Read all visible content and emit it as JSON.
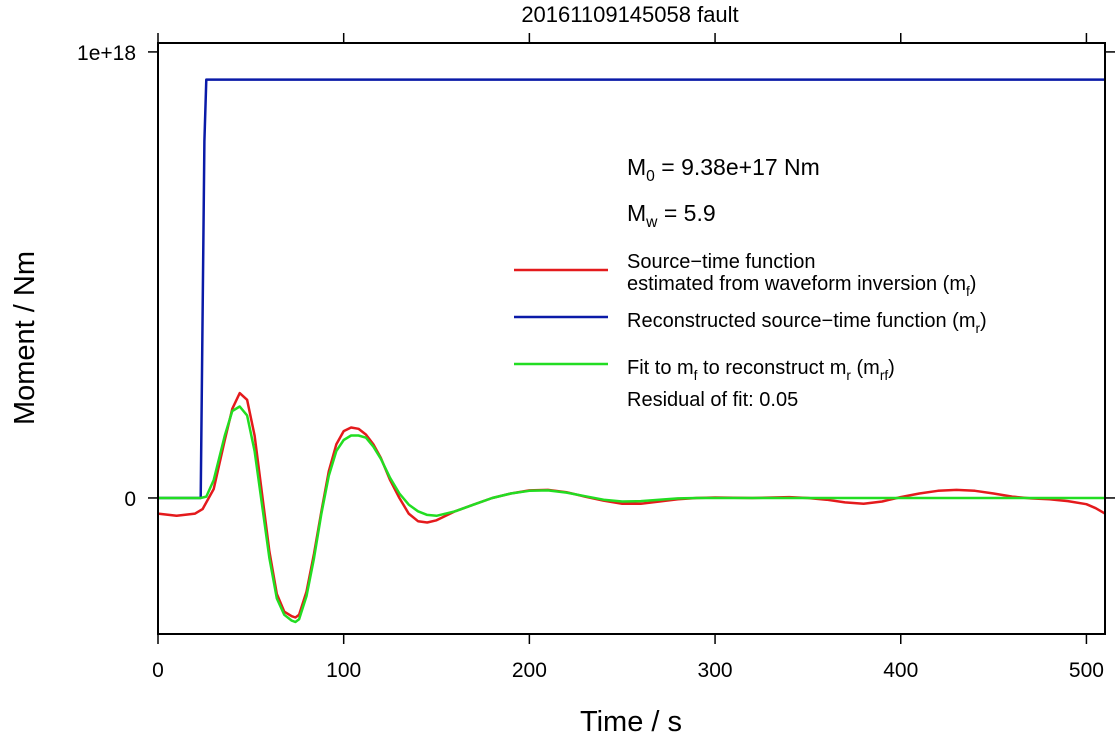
{
  "chart_data": {
    "type": "line",
    "title": "20161109145058 fault",
    "xlabel": "Time / s",
    "ylabel": "Moment / Nm",
    "xlim": [
      0,
      510
    ],
    "ylim": [
      -3.05e+17,
      1.02e+18
    ],
    "grid": false,
    "legend_position": "right",
    "x_ticks": [
      0,
      100,
      200,
      300,
      400,
      500
    ],
    "x_tick_labels": [
      "0",
      "100",
      "200",
      "300",
      "400",
      "500"
    ],
    "y_ticks": [
      0,
      1e+18
    ],
    "y_tick_labels": [
      "0",
      "1e+18"
    ],
    "annotations": {
      "m0": {
        "main": "M",
        "sub": "0",
        "rest": " = 9.38e+17 Nm"
      },
      "mw": {
        "main": "M",
        "sub": "w",
        "rest": " = 5.9"
      },
      "residual": "Residual of fit: 0.05"
    },
    "legend": [
      {
        "color": "#e41a1c",
        "lines": [
          [
            {
              "t": "Source−time function"
            }
          ],
          [
            {
              "t": "estimated from waveform inversion (m"
            },
            {
              "t": "f",
              "sub": true
            },
            {
              "t": ")"
            }
          ]
        ]
      },
      {
        "color": "#0a1aa8",
        "lines": [
          [
            {
              "t": "Reconstructed source−time function (m"
            },
            {
              "t": "r",
              "sub": true
            },
            {
              "t": ")"
            }
          ]
        ]
      },
      {
        "color": "#22dd22",
        "lines": [
          [
            {
              "t": "Fit to m"
            },
            {
              "t": "f",
              "sub": true
            },
            {
              "t": " to reconstruct m"
            },
            {
              "t": "r",
              "sub": true
            },
            {
              "t": " (m"
            },
            {
              "t": "rf",
              "sub": true
            },
            {
              "t": ")"
            }
          ]
        ]
      }
    ],
    "series": [
      {
        "color": "#0a1aa8",
        "x": [
          0,
          23,
          25,
          26,
          510
        ],
        "y": [
          0,
          0,
          8e+17,
          9.38e+17,
          9.38e+17
        ]
      },
      {
        "color": "#e41a1c",
        "x": [
          0,
          10,
          20,
          24,
          30,
          36,
          40,
          44,
          48,
          52,
          56,
          60,
          64,
          68,
          72,
          74,
          76,
          80,
          84,
          88,
          92,
          96,
          100,
          104,
          108,
          112,
          116,
          120,
          125,
          130,
          135,
          140,
          145,
          150,
          160,
          170,
          180,
          190,
          200,
          210,
          220,
          230,
          240,
          250,
          260,
          270,
          280,
          290,
          300,
          320,
          340,
          350,
          360,
          370,
          380,
          390,
          400,
          410,
          420,
          430,
          440,
          450,
          460,
          470,
          480,
          490,
          500,
          505,
          510
        ],
        "y": [
          -3.5e+16,
          -4e+16,
          -3.5e+16,
          -2.5e+16,
          2e+16,
          1.3e+17,
          2e+17,
          2.35e+17,
          2.2e+17,
          1.4e+17,
          1e+16,
          -1.2e+17,
          -2.15e+17,
          -2.55e+17,
          -2.65e+17,
          -2.68e+17,
          -2.62e+17,
          -2.1e+17,
          -1.25e+17,
          -3e+16,
          6e+16,
          1.2e+17,
          1.5e+17,
          1.58e+17,
          1.55e+17,
          1.42e+17,
          1.2e+17,
          9e+16,
          4e+16,
          0,
          -3.5e+16,
          -5.2e+16,
          -5.5e+16,
          -5e+16,
          -3e+16,
          -1.5e+16,
          0,
          1e+16,
          1.7e+16,
          1.8e+16,
          1.3e+16,
          3000000000000000.0,
          -6000000000000000.0,
          -1.3e+16,
          -1.3e+16,
          -8000000000000000.0,
          -3000000000000000.0,
          0,
          1000000000000000.0,
          0,
          2000000000000000.0,
          0,
          -4000000000000000.0,
          -1e+16,
          -1.3e+16,
          -8000000000000000.0,
          2000000000000000.0,
          1e+16,
          1.6e+16,
          1.8e+16,
          1.6e+16,
          1e+16,
          3000000000000000.0,
          -1000000000000000.0,
          -3000000000000000.0,
          -7000000000000000.0,
          -1.4e+16,
          -2.3e+16,
          -3.5e+16
        ]
      },
      {
        "color": "#22dd22",
        "x": [
          0,
          23,
          26,
          30,
          36,
          40,
          44,
          48,
          52,
          56,
          60,
          64,
          68,
          72,
          74,
          76,
          80,
          84,
          88,
          92,
          96,
          100,
          104,
          108,
          112,
          116,
          120,
          125,
          130,
          135,
          140,
          145,
          150,
          160,
          170,
          180,
          190,
          200,
          210,
          220,
          230,
          240,
          250,
          260,
          270,
          280,
          290,
          300,
          350,
          400,
          450,
          510
        ],
        "y": [
          0,
          0,
          3000000000000000.0,
          4e+16,
          1.4e+17,
          1.95e+17,
          2.05e+17,
          1.85e+17,
          1.05e+17,
          -1.5e+16,
          -1.35e+17,
          -2.25e+17,
          -2.62e+17,
          -2.75e+17,
          -2.78e+17,
          -2.72e+17,
          -2.2e+17,
          -1.35e+17,
          -3.5e+16,
          5e+16,
          1.05e+17,
          1.3e+17,
          1.4e+17,
          1.4e+17,
          1.35e+17,
          1.15e+17,
          8.8e+16,
          4.5e+16,
          1e+16,
          -1.5e+16,
          -3e+16,
          -3.8e+16,
          -4e+16,
          -3e+16,
          -1.5e+16,
          0,
          1e+16,
          1.6e+16,
          1.7e+16,
          1.2e+16,
          4000000000000000.0,
          -4000000000000000.0,
          -8000000000000000.0,
          -7000000000000000.0,
          -4000000000000000.0,
          -1000000000000000.0,
          0,
          0,
          0,
          0,
          0,
          0
        ]
      }
    ]
  }
}
